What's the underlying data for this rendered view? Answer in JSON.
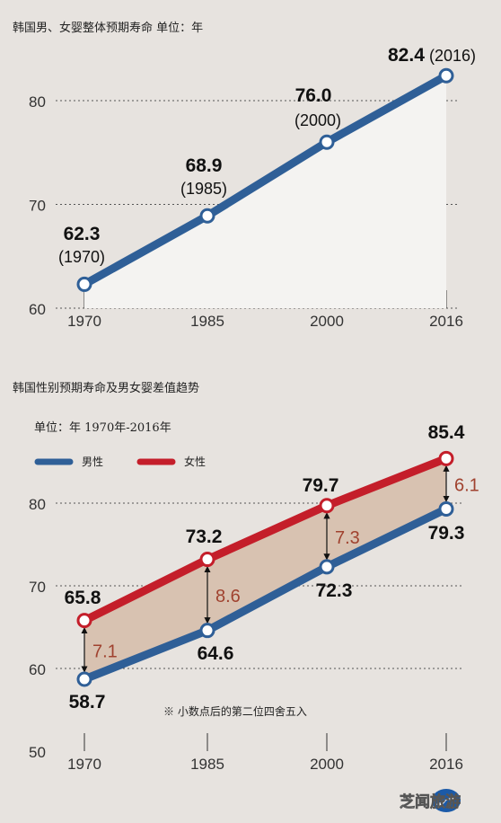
{
  "chart_data": [
    {
      "type": "line",
      "title": "韩国男、女婴整体预期寿命 单位：年",
      "categories": [
        "1970",
        "1985",
        "2000",
        "2016"
      ],
      "series": [
        {
          "values": [
            62.3,
            68.9,
            76.0,
            82.4
          ]
        }
      ],
      "value_labels": [
        "62.3",
        "68.9",
        "76.0",
        "82.4"
      ],
      "year_labels": [
        "(1970)",
        "(1985)",
        "(2000)",
        "(2016)"
      ],
      "yticks": [
        "60",
        "70",
        "80"
      ],
      "ylim": [
        60,
        85
      ],
      "grid": "dotted horizontal",
      "colors": {
        "line": "#2f5f97",
        "fill": "#f4f3f1"
      }
    },
    {
      "type": "line",
      "title": "韩国性别预期寿命及男女婴差值趋势",
      "subtitle": "单位：年 1970年-2016年",
      "categories": [
        "1970",
        "1985",
        "2000",
        "2016"
      ],
      "series": [
        {
          "name": "男性",
          "values": [
            58.7,
            64.6,
            72.3,
            79.3
          ],
          "color": "#2f5f97"
        },
        {
          "name": "女性",
          "values": [
            65.8,
            73.2,
            79.7,
            85.4
          ],
          "color": "#c41e2a"
        }
      ],
      "male_labels": [
        "58.7",
        "64.6",
        "72.3",
        "79.3"
      ],
      "female_labels": [
        "65.8",
        "73.2",
        "79.7",
        "85.4"
      ],
      "differences": [
        "7.1",
        "8.6",
        "7.3",
        "6.1"
      ],
      "yticks": [
        "50",
        "60",
        "70",
        "80"
      ],
      "ylim": [
        50,
        88
      ],
      "note": "※ 小数点后的第二位四舍五入",
      "legend_position": "top-left",
      "colors": {
        "band": "#d8c2b1",
        "diff_text": "#a0422f"
      }
    }
  ],
  "watermark": "芝闻旅游"
}
